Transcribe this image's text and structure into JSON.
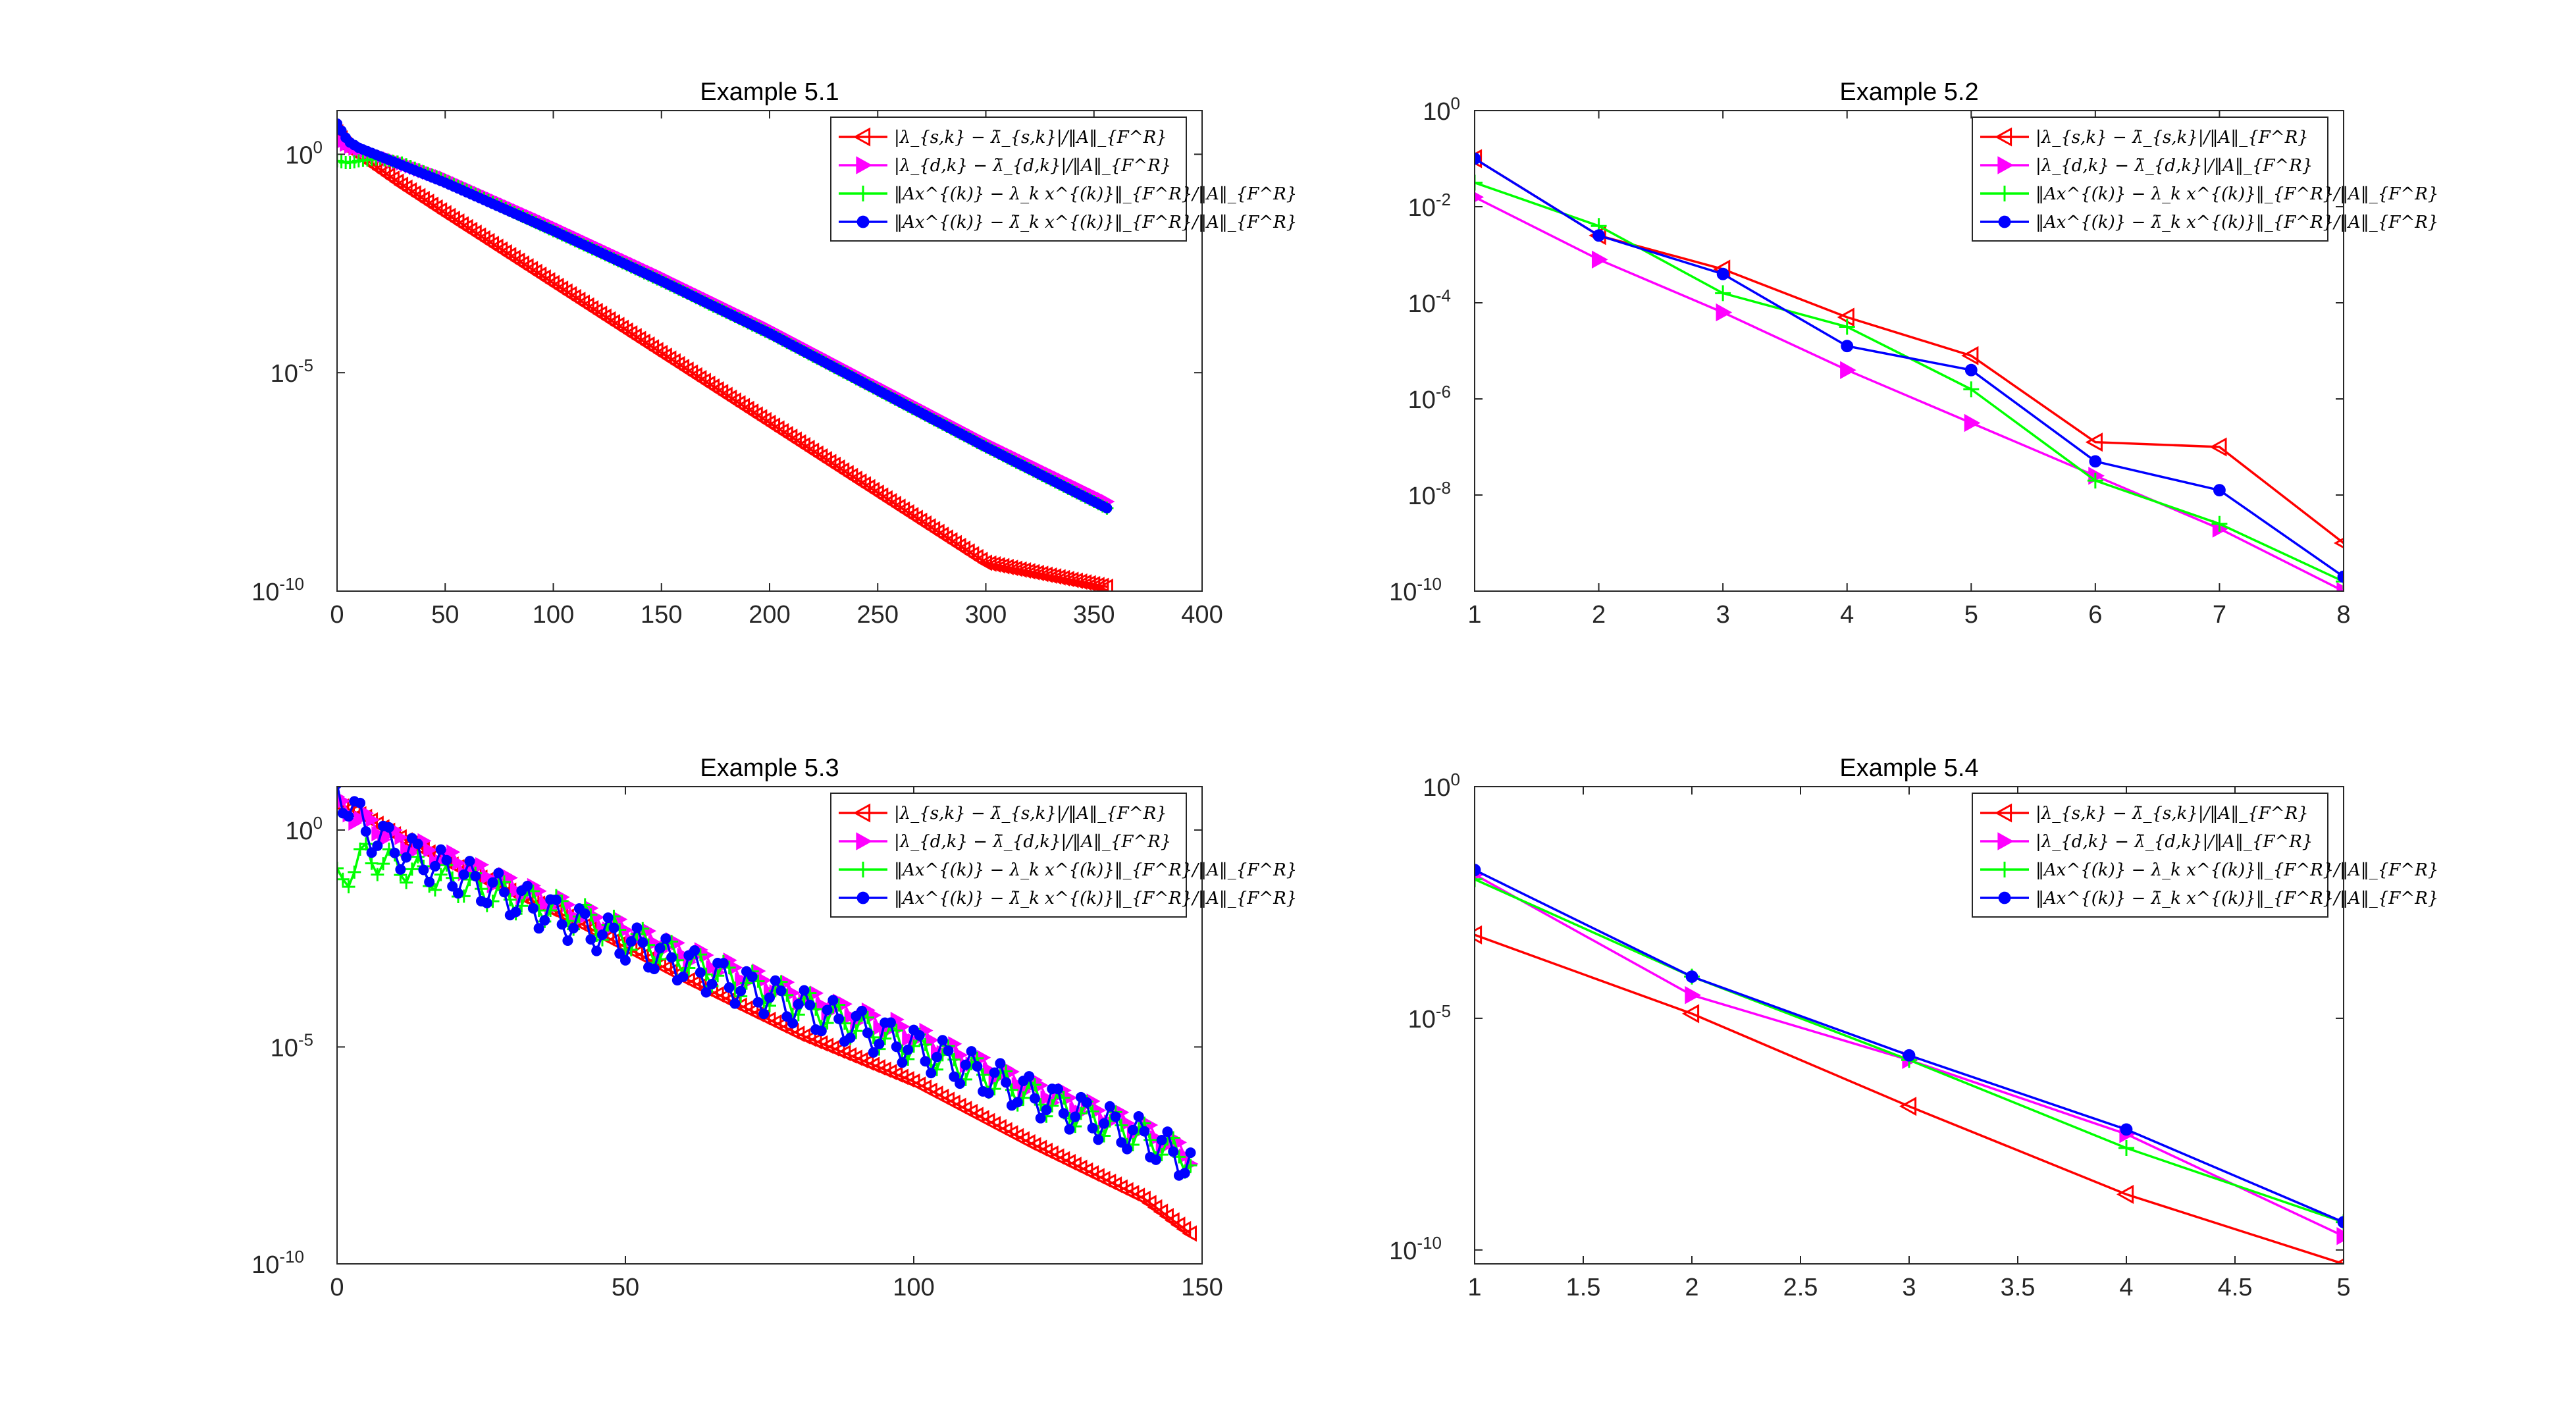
{
  "chart_data": [
    {
      "type": "line",
      "title": "Example 5.1",
      "xlabel": "",
      "ylabel": "",
      "xlim": [
        0,
        400
      ],
      "xticks": [
        0,
        50,
        100,
        150,
        200,
        250,
        300,
        350,
        400
      ],
      "xtick_labels": [
        "0",
        "50",
        "100",
        "150",
        "200",
        "250",
        "300",
        "350",
        "400"
      ],
      "yscale": "log",
      "ylim_exp": [
        -10,
        1
      ],
      "yticks_exp": [
        0,
        -5,
        -10
      ],
      "ytick_labels": [
        "10",
        "10",
        "10"
      ],
      "ytick_exponents": [
        "0",
        "-5",
        "-10"
      ],
      "legend": "top-right",
      "series": [
        {
          "name": "|λ_{s,k} − λ̄_{s,k}|/‖A‖_{F^R}",
          "color": "#ff0000",
          "marker": "triangle-left",
          "x": [
            0,
            5,
            10,
            20,
            30,
            50,
            100,
            150,
            200,
            250,
            300,
            356
          ],
          "log10_y": [
            0.5,
            0.15,
            0.0,
            -0.35,
            -0.7,
            -1.35,
            -2.95,
            -4.55,
            -6.15,
            -7.75,
            -9.35,
            -9.9
          ],
          "dense": true
        },
        {
          "name": "|λ_{d,k} − λ̄_{d,k}|/‖A‖_{F^R}",
          "color": "#ff00ff",
          "marker": "triangle-right",
          "x": [
            0,
            5,
            10,
            20,
            30,
            50,
            100,
            150,
            200,
            250,
            300,
            356
          ],
          "log10_y": [
            0.35,
            0.2,
            0.1,
            -0.05,
            -0.2,
            -0.55,
            -1.65,
            -2.8,
            -4.0,
            -5.3,
            -6.6,
            -7.95
          ],
          "dense": true
        },
        {
          "name": "‖Ax^{(k)} − λ_k x^{(k)}‖_{F^R}/‖A‖_{F^R}",
          "color": "#00ff00",
          "marker": "plus",
          "x": [
            0,
            5,
            10,
            20,
            30,
            50,
            100,
            150,
            200,
            250,
            300,
            356
          ],
          "log10_y": [
            -0.15,
            -0.2,
            -0.15,
            -0.1,
            -0.2,
            -0.6,
            -1.75,
            -2.9,
            -4.1,
            -5.4,
            -6.7,
            -8.1
          ],
          "dense": true
        },
        {
          "name": "‖Ax^{(k)} − λ̄_k x^{(k)}‖_{F^R}/‖A‖_{F^R}",
          "color": "#0000ff",
          "marker": "circle",
          "x": [
            0,
            5,
            10,
            20,
            30,
            50,
            100,
            150,
            200,
            250,
            300,
            356
          ],
          "log10_y": [
            0.7,
            0.3,
            0.15,
            -0.05,
            -0.25,
            -0.65,
            -1.75,
            -2.9,
            -4.1,
            -5.4,
            -6.7,
            -8.1
          ],
          "dense": true
        }
      ]
    },
    {
      "type": "line",
      "title": "Example 5.2",
      "xlabel": "",
      "ylabel": "",
      "xlim": [
        1,
        8
      ],
      "xticks": [
        1,
        2,
        3,
        4,
        5,
        6,
        7,
        8
      ],
      "xtick_labels": [
        "1",
        "2",
        "3",
        "4",
        "5",
        "6",
        "7",
        "8"
      ],
      "yscale": "log",
      "ylim_exp": [
        -10,
        0
      ],
      "yticks_exp": [
        0,
        -2,
        -4,
        -6,
        -8,
        -10
      ],
      "ytick_labels": [
        "10",
        "10",
        "10",
        "10",
        "10",
        "10"
      ],
      "ytick_exponents": [
        "0",
        "-2",
        "-4",
        "-6",
        "-8",
        "-10"
      ],
      "legend": "top-right",
      "series": [
        {
          "name": "|λ_{s,k} − λ̄_{s,k}|/‖A‖_{F^R}",
          "color": "#ff0000",
          "marker": "triangle-left",
          "x": [
            1,
            2,
            3,
            4,
            5,
            6,
            7,
            8
          ],
          "log10_y": [
            -1.0,
            -2.6,
            -3.3,
            -4.3,
            -5.1,
            -6.9,
            -7.0,
            -9.0
          ]
        },
        {
          "name": "|λ_{d,k} − λ̄_{d,k}|/‖A‖_{F^R}",
          "color": "#ff00ff",
          "marker": "triangle-right",
          "x": [
            1,
            2,
            3,
            4,
            5,
            6,
            7,
            8
          ],
          "log10_y": [
            -1.8,
            -3.1,
            -4.2,
            -5.4,
            -6.5,
            -7.6,
            -8.7,
            -10.0
          ]
        },
        {
          "name": "‖Ax^{(k)} − λ_k x^{(k)}‖_{F^R}/‖A‖_{F^R}",
          "color": "#00ff00",
          "marker": "plus",
          "x": [
            1,
            2,
            3,
            4,
            5,
            6,
            7,
            8
          ],
          "log10_y": [
            -1.5,
            -2.4,
            -3.8,
            -4.5,
            -5.8,
            -7.7,
            -8.6,
            -9.8
          ]
        },
        {
          "name": "‖Ax^{(k)} − λ̄_k x^{(k)}‖_{F^R}/‖A‖_{F^R}",
          "color": "#0000ff",
          "marker": "circle",
          "x": [
            1,
            2,
            3,
            4,
            5,
            6,
            7,
            8
          ],
          "log10_y": [
            -1.0,
            -2.6,
            -3.4,
            -4.9,
            -5.4,
            -7.3,
            -7.9,
            -9.7
          ]
        }
      ]
    },
    {
      "type": "line",
      "title": "Example 5.3",
      "xlabel": "",
      "ylabel": "",
      "xlim": [
        0,
        150
      ],
      "xticks": [
        0,
        50,
        100,
        150
      ],
      "xtick_labels": [
        "0",
        "50",
        "100",
        "150"
      ],
      "yscale": "log",
      "ylim_exp": [
        -10,
        1
      ],
      "yticks_exp": [
        0,
        -5,
        -10
      ],
      "ytick_labels": [
        "10",
        "10",
        "10"
      ],
      "ytick_exponents": [
        "0",
        "-5",
        "-10"
      ],
      "legend": "top-right",
      "series": [
        {
          "name": "|λ_{s,k} − λ̄_{s,k}|/‖A‖_{F^R}",
          "color": "#ff0000",
          "marker": "triangle-left",
          "x": [
            0,
            5,
            10,
            20,
            40,
            60,
            80,
            100,
            120,
            140,
            148
          ],
          "log10_y": [
            0.6,
            0.3,
            -0.1,
            -0.8,
            -2.0,
            -3.4,
            -4.7,
            -5.8,
            -7.2,
            -8.5,
            -9.3
          ],
          "dense": true
        },
        {
          "name": "|λ_{d,k} − λ̄_{d,k}|/‖A‖_{F^R}",
          "color": "#ff00ff",
          "marker": "triangle-right",
          "x": [
            0,
            5,
            10,
            20,
            40,
            60,
            80,
            100,
            120,
            140,
            148
          ],
          "log10_y": [
            0.6,
            0.2,
            -0.2,
            -0.7,
            -1.8,
            -2.8,
            -3.8,
            -4.7,
            -5.9,
            -6.9,
            -7.5
          ],
          "dense": true,
          "oscillate": 0.2
        },
        {
          "name": "‖Ax^{(k)} − λ_k x^{(k)}‖_{F^R}/‖A‖_{F^R}",
          "color": "#00ff00",
          "marker": "plus",
          "x": [
            0,
            5,
            10,
            20,
            40,
            60,
            80,
            100,
            120,
            140,
            148
          ],
          "log10_y": [
            -1.2,
            -0.6,
            -0.8,
            -1.2,
            -1.9,
            -3.0,
            -4.0,
            -5.0,
            -6.1,
            -7.1,
            -7.6
          ],
          "dense": true,
          "oscillate": 0.35
        },
        {
          "name": "‖Ax^{(k)} − λ̄_k x^{(k)}‖_{F^R}/‖A‖_{F^R}",
          "color": "#0000ff",
          "marker": "circle",
          "x": [
            0,
            5,
            10,
            20,
            40,
            60,
            80,
            100,
            120,
            140,
            148
          ],
          "log10_y": [
            1.0,
            0.0,
            -0.4,
            -1.0,
            -2.1,
            -3.1,
            -4.1,
            -5.0,
            -6.1,
            -7.1,
            -7.7
          ],
          "dense": true,
          "oscillate": 0.45
        }
      ]
    },
    {
      "type": "line",
      "title": "Example 5.4",
      "xlabel": "",
      "ylabel": "",
      "xlim": [
        1,
        5
      ],
      "xticks": [
        1,
        1.5,
        2,
        2.5,
        3,
        3.5,
        4,
        4.5,
        5
      ],
      "xtick_labels": [
        "1",
        "1.5",
        "2",
        "2.5",
        "3",
        "3.5",
        "4",
        "4.5",
        "5"
      ],
      "yscale": "log",
      "ylim_exp": [
        -10.3,
        0
      ],
      "yticks_exp": [
        0,
        -5,
        -10
      ],
      "ytick_labels": [
        "10",
        "10",
        "10"
      ],
      "ytick_exponents": [
        "0",
        "-5",
        "-10"
      ],
      "legend": "top-right",
      "series": [
        {
          "name": "|λ_{s,k} − λ̄_{s,k}|/‖A‖_{F^R}",
          "color": "#ff0000",
          "marker": "triangle-left",
          "x": [
            1,
            2,
            3,
            4,
            5
          ],
          "log10_y": [
            -3.2,
            -4.9,
            -6.9,
            -8.8,
            -10.3
          ]
        },
        {
          "name": "|λ_{d,k} − λ̄_{d,k}|/‖A‖_{F^R}",
          "color": "#ff00ff",
          "marker": "triangle-right",
          "x": [
            1,
            2,
            3,
            4,
            5
          ],
          "log10_y": [
            -1.9,
            -4.5,
            -5.9,
            -7.5,
            -9.7
          ]
        },
        {
          "name": "‖Ax^{(k)} − λ_k x^{(k)}‖_{F^R}/‖A‖_{F^R}",
          "color": "#00ff00",
          "marker": "plus",
          "x": [
            1,
            2,
            3,
            4,
            5
          ],
          "log10_y": [
            -2.0,
            -4.1,
            -5.9,
            -7.8,
            -9.4
          ]
        },
        {
          "name": "‖Ax^{(k)} − λ̄_k x^{(k)}‖_{F^R}/‖A‖_{F^R}",
          "color": "#0000ff",
          "marker": "circle",
          "x": [
            1,
            2,
            3,
            4,
            5
          ],
          "log10_y": [
            -1.8,
            -4.1,
            -5.8,
            -7.4,
            -9.4
          ]
        }
      ]
    }
  ]
}
